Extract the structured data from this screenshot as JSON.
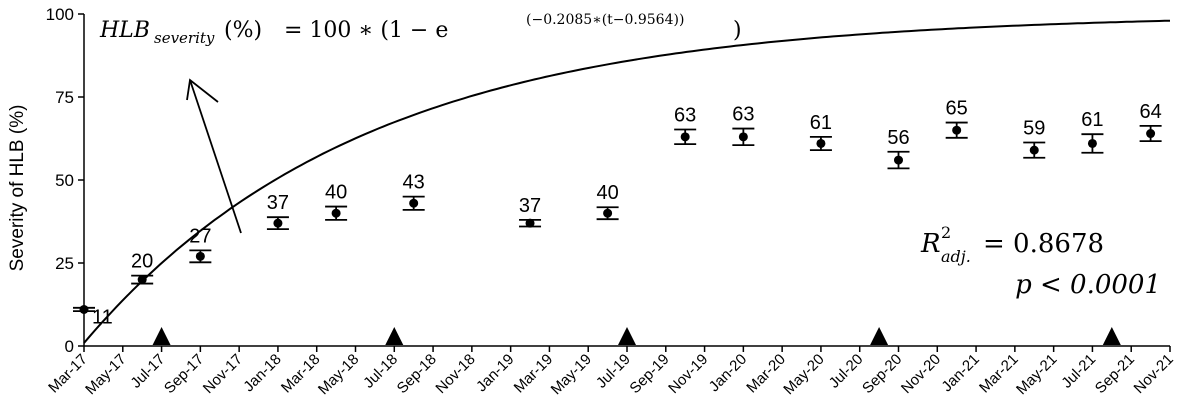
{
  "chart_data": {
    "type": "scatter",
    "ylabel": "Severity of HLB (%)",
    "ylim": [
      0,
      100
    ],
    "yticks": [
      0,
      25,
      50,
      75,
      100
    ],
    "x_ticks": [
      "Mar-17",
      "May-17",
      "Jul-17",
      "Sep-17",
      "Nov-17",
      "Jan-18",
      "Mar-18",
      "May-18",
      "Jul-18",
      "Sep-18",
      "Nov-18",
      "Jan-19",
      "Mar-19",
      "May-19",
      "Jul-19",
      "Sep-19",
      "Nov-19",
      "Jan-20",
      "Mar-20",
      "May-20",
      "Jul-20",
      "Sep-20",
      "Nov-20",
      "Jan-21",
      "Mar-21",
      "May-21",
      "Jul-21",
      "Sep-21",
      "Nov-21"
    ],
    "equation": {
      "lhs": "HLB",
      "lhs_sub": "severity",
      "unit": "(%)",
      "rhs_prefix": "= 100 ∗ (1 − e",
      "exponent": "(−0.2085∗(t−0.9564))",
      "close": ")"
    },
    "fit": {
      "a": 100,
      "k": 0.2085,
      "c": 0.9564
    },
    "stats": {
      "r_label": "R",
      "r_sup": "2",
      "r_sub": "adj.",
      "r_value": "= 0.8678",
      "p_text": "p < 0.0001"
    },
    "points": [
      {
        "x": "Mar-17",
        "y": 11,
        "err": 0.5,
        "label": "11"
      },
      {
        "x": "Jun-17",
        "y": 20,
        "err": 1.2,
        "label": "20"
      },
      {
        "x": "Sep-17",
        "y": 27,
        "err": 1.8,
        "label": "27"
      },
      {
        "x": "Jan-18",
        "y": 37,
        "err": 1.8,
        "label": "37"
      },
      {
        "x": "Apr-18",
        "y": 40,
        "err": 2.0,
        "label": "40"
      },
      {
        "x": "Aug-18",
        "y": 43,
        "err": 2.0,
        "label": "43"
      },
      {
        "x": "Feb-19",
        "y": 37,
        "err": 1.0,
        "label": "37"
      },
      {
        "x": "Jun-19",
        "y": 40,
        "err": 1.8,
        "label": "40"
      },
      {
        "x": "Oct-19",
        "y": 63,
        "err": 2.2,
        "label": "63"
      },
      {
        "x": "Jan-20",
        "y": 63,
        "err": 2.5,
        "label": "63"
      },
      {
        "x": "May-20",
        "y": 61,
        "err": 2.0,
        "label": "61"
      },
      {
        "x": "Sep-20",
        "y": 56,
        "err": 2.5,
        "label": "56"
      },
      {
        "x": "Dec-20",
        "y": 65,
        "err": 2.3,
        "label": "65"
      },
      {
        "x": "Apr-21",
        "y": 59,
        "err": 2.3,
        "label": "59"
      },
      {
        "x": "Jul-21",
        "y": 61,
        "err": 2.8,
        "label": "61"
      },
      {
        "x": "Oct-21",
        "y": 64,
        "err": 2.3,
        "label": "64"
      }
    ],
    "markers": [
      "Jul-17",
      "Jul-18",
      "Jul-19",
      "Aug-20",
      "Aug-21"
    ]
  }
}
